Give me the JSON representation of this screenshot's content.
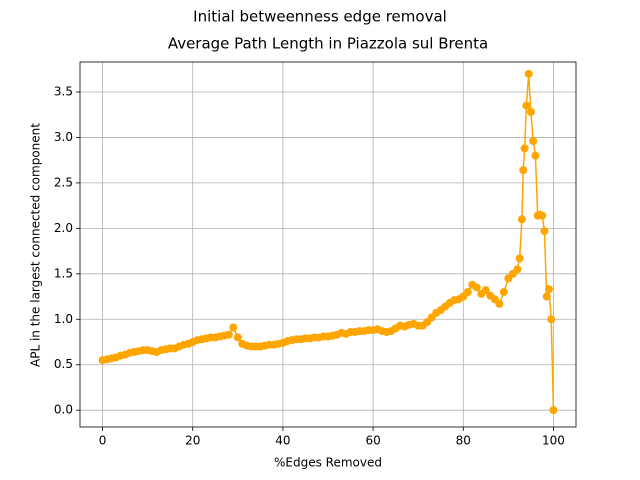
{
  "chart_data": {
    "type": "line",
    "title": "Initial betweenness edge removal",
    "subtitle": "Average Path Length in Piazzola sul Brenta",
    "x_label": "%Edges Removed",
    "y_label": "APL in the largest connected component",
    "color": "#ffa500",
    "grid": true,
    "xlim": [
      -5,
      105
    ],
    "ylim": [
      -0.185,
      3.83
    ],
    "xticks": [
      0,
      20,
      40,
      60,
      80,
      100
    ],
    "yticks": [
      {
        "value": 0,
        "label": "0.0"
      },
      {
        "value": 0.5,
        "label": "0.5"
      },
      {
        "value": 1,
        "label": "1.0"
      },
      {
        "value": 1.5,
        "label": "1.5"
      },
      {
        "value": 2,
        "label": "2.0"
      },
      {
        "value": 2.5,
        "label": "2.5"
      },
      {
        "value": 3,
        "label": "3.0"
      },
      {
        "value": 3.5,
        "label": "3.5"
      }
    ],
    "x": [
      0,
      1,
      2,
      3,
      4,
      5,
      6,
      7,
      8,
      9,
      10,
      11,
      12,
      13,
      14,
      15,
      16,
      17,
      18,
      19,
      20,
      21,
      22,
      23,
      24,
      25,
      26,
      27,
      28,
      29,
      30,
      31,
      32,
      33,
      34,
      35,
      36,
      37,
      38,
      39,
      40,
      41,
      42,
      43,
      44,
      45,
      46,
      47,
      48,
      49,
      50,
      51,
      52,
      53,
      54,
      55,
      56,
      57,
      58,
      59,
      60,
      61,
      62,
      63,
      64,
      65,
      66,
      67,
      68,
      69,
      70,
      71,
      72,
      73,
      74,
      75,
      76,
      77,
      78,
      79,
      80,
      81,
      82,
      83,
      84,
      85,
      86,
      87,
      88,
      89,
      90,
      91,
      92,
      92.5,
      93,
      93.3,
      93.6,
      94,
      94.5,
      95,
      95.5,
      96,
      96.5,
      97,
      97.5,
      98,
      98.5,
      99,
      99.5,
      100
    ],
    "values": [
      0.55,
      0.56,
      0.57,
      0.58,
      0.6,
      0.61,
      0.63,
      0.64,
      0.65,
      0.66,
      0.66,
      0.65,
      0.64,
      0.66,
      0.67,
      0.68,
      0.68,
      0.7,
      0.72,
      0.73,
      0.75,
      0.77,
      0.78,
      0.79,
      0.8,
      0.8,
      0.81,
      0.82,
      0.83,
      0.91,
      0.8,
      0.73,
      0.71,
      0.7,
      0.7,
      0.7,
      0.71,
      0.72,
      0.72,
      0.73,
      0.74,
      0.76,
      0.77,
      0.78,
      0.78,
      0.79,
      0.79,
      0.8,
      0.8,
      0.81,
      0.81,
      0.82,
      0.83,
      0.85,
      0.84,
      0.86,
      0.86,
      0.87,
      0.87,
      0.88,
      0.88,
      0.89,
      0.87,
      0.86,
      0.87,
      0.9,
      0.93,
      0.92,
      0.94,
      0.95,
      0.93,
      0.93,
      0.97,
      1.02,
      1.07,
      1.1,
      1.14,
      1.18,
      1.21,
      1.22,
      1.25,
      1.3,
      1.38,
      1.35,
      1.28,
      1.32,
      1.26,
      1.22,
      1.17,
      1.3,
      1.45,
      1.5,
      1.55,
      1.67,
      2.1,
      2.64,
      2.88,
      3.35,
      3.7,
      3.28,
      2.96,
      2.8,
      2.14,
      2.15,
      2.14,
      1.97,
      1.25,
      1.33,
      1.0,
      0.0
    ]
  }
}
